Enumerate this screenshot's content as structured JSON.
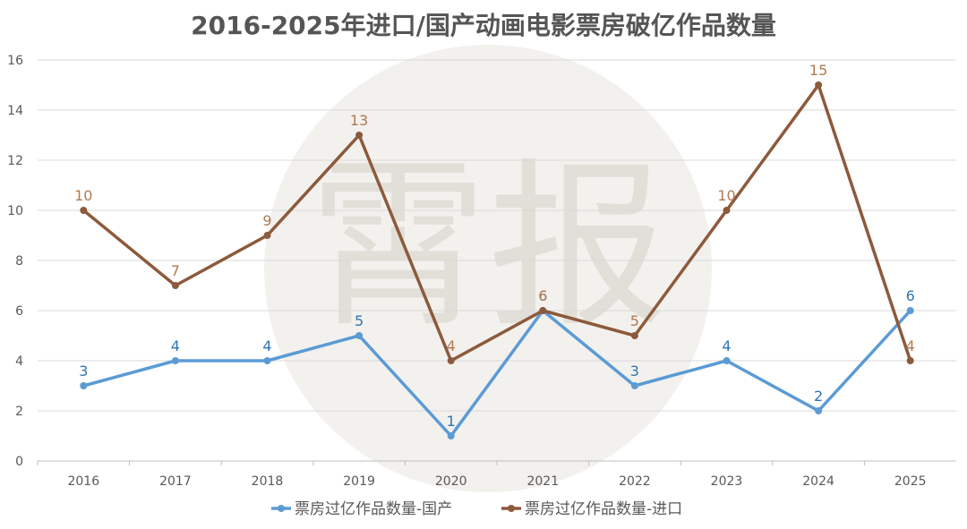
{
  "chart_data": {
    "type": "line",
    "title": "2016-2025年进口/国产动画电影票房破亿作品数量",
    "categories": [
      "2016",
      "2017",
      "2018",
      "2019",
      "2020",
      "2021",
      "2022",
      "2023",
      "2024",
      "2025"
    ],
    "ylim": [
      0,
      16
    ],
    "yticks": [
      0,
      2,
      4,
      6,
      8,
      10,
      12,
      14,
      16
    ],
    "grid": true,
    "legend_position": "bottom",
    "series": [
      {
        "name": "票房过亿作品数量-国产",
        "color": "#5b9bd5",
        "label_color": "#2e75b6",
        "values": [
          3,
          4,
          4,
          5,
          1,
          6,
          3,
          4,
          2,
          6
        ]
      },
      {
        "name": "票房过亿作品数量-进口",
        "color": "#8c5a3c",
        "label_color": "#b07a50",
        "values": [
          10,
          7,
          9,
          13,
          4,
          6,
          5,
          10,
          15,
          4
        ]
      }
    ],
    "watermark_text": "霄报"
  }
}
